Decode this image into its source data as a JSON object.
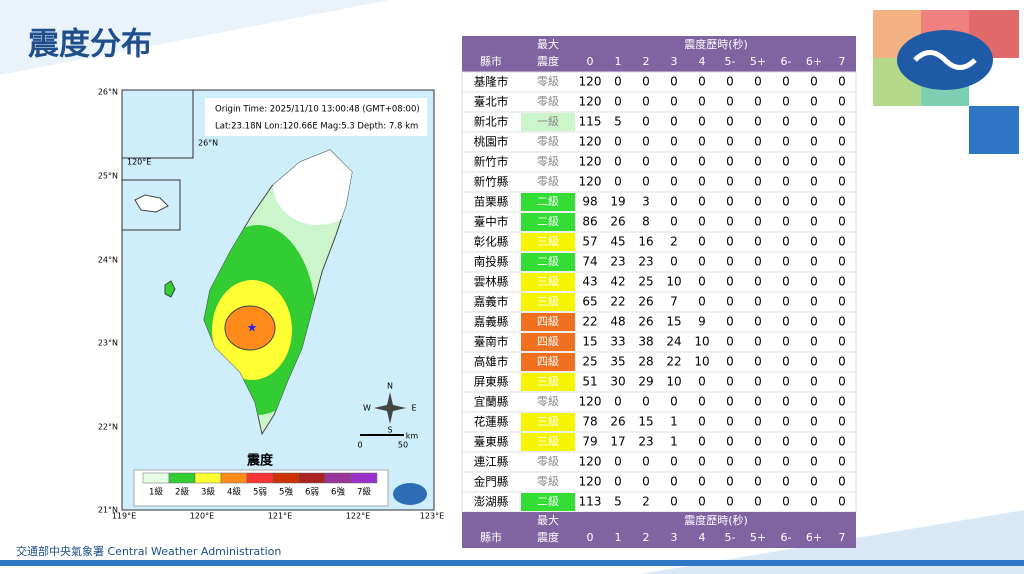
{
  "header": {
    "title": "震度分布"
  },
  "footer": {
    "agency": "交通部中央氣象署 Central Weather Administration"
  },
  "map": {
    "info": [
      "Origin Time: 2025/11/10  13:00:48  (GMT+08:00)",
      "Lat:23.18N  Lon:120.66E  Mag:5.3  Depth:  7.8  km"
    ],
    "lat_labels": [
      "26°N",
      "25°N",
      "24°N",
      "23°N",
      "22°N",
      "21°N"
    ],
    "lon_labels": [
      "119°E",
      "120°E",
      "121°E",
      "122°E",
      "123°E"
    ],
    "inset_lat": "26°N",
    "inset_lon": "120°E",
    "compass": [
      "N",
      "E",
      "S",
      "W"
    ],
    "scale": [
      "0",
      "50",
      "km"
    ],
    "legend_title": "震度",
    "legend": [
      {
        "label": "1級",
        "color": "#e6ffe6"
      },
      {
        "label": "2級",
        "color": "#33cc33"
      },
      {
        "label": "3級",
        "color": "#ffff33"
      },
      {
        "label": "4級",
        "color": "#ff8c1a"
      },
      {
        "label": "5弱",
        "color": "#ff3333"
      },
      {
        "label": "5強",
        "color": "#cc3300"
      },
      {
        "label": "6弱",
        "color": "#aa2222"
      },
      {
        "label": "6強",
        "color": "#993399"
      },
      {
        "label": "7級",
        "color": "#9933cc"
      }
    ]
  },
  "table": {
    "county": "縣市",
    "max_top": "最大",
    "max_bottom": "震度",
    "duration": "震度歷時(秒)",
    "columns": [
      "0",
      "1",
      "2",
      "3",
      "4",
      "5-",
      "5+",
      "6-",
      "6+",
      "7"
    ],
    "level_colors": {
      "零級": "#ffffff",
      "一級": "#ccf5cc",
      "二級": "#33dd33",
      "三級": "#f5f500",
      "四級": "#f07020"
    },
    "rows": [
      [
        "基隆市",
        "零級",
        120,
        0,
        0,
        0,
        0,
        0,
        0,
        0,
        0,
        0
      ],
      [
        "臺北市",
        "零級",
        120,
        0,
        0,
        0,
        0,
        0,
        0,
        0,
        0,
        0
      ],
      [
        "新北市",
        "一級",
        115,
        5,
        0,
        0,
        0,
        0,
        0,
        0,
        0,
        0
      ],
      [
        "桃園市",
        "零級",
        120,
        0,
        0,
        0,
        0,
        0,
        0,
        0,
        0,
        0
      ],
      [
        "新竹市",
        "零級",
        120,
        0,
        0,
        0,
        0,
        0,
        0,
        0,
        0,
        0
      ],
      [
        "新竹縣",
        "零級",
        120,
        0,
        0,
        0,
        0,
        0,
        0,
        0,
        0,
        0
      ],
      [
        "苗栗縣",
        "二級",
        98,
        19,
        3,
        0,
        0,
        0,
        0,
        0,
        0,
        0
      ],
      [
        "臺中市",
        "二級",
        86,
        26,
        8,
        0,
        0,
        0,
        0,
        0,
        0,
        0
      ],
      [
        "彰化縣",
        "三級",
        57,
        45,
        16,
        2,
        0,
        0,
        0,
        0,
        0,
        0
      ],
      [
        "南投縣",
        "二級",
        74,
        23,
        23,
        0,
        0,
        0,
        0,
        0,
        0,
        0
      ],
      [
        "雲林縣",
        "三級",
        43,
        42,
        25,
        10,
        0,
        0,
        0,
        0,
        0,
        0
      ],
      [
        "嘉義市",
        "三級",
        65,
        22,
        26,
        7,
        0,
        0,
        0,
        0,
        0,
        0
      ],
      [
        "嘉義縣",
        "四級",
        22,
        48,
        26,
        15,
        9,
        0,
        0,
        0,
        0,
        0
      ],
      [
        "臺南市",
        "四級",
        15,
        33,
        38,
        24,
        10,
        0,
        0,
        0,
        0,
        0
      ],
      [
        "高雄市",
        "四級",
        25,
        35,
        28,
        22,
        10,
        0,
        0,
        0,
        0,
        0
      ],
      [
        "屏東縣",
        "三級",
        51,
        30,
        29,
        10,
        0,
        0,
        0,
        0,
        0,
        0
      ],
      [
        "宜蘭縣",
        "零級",
        120,
        0,
        0,
        0,
        0,
        0,
        0,
        0,
        0,
        0
      ],
      [
        "花蓮縣",
        "三級",
        78,
        26,
        15,
        1,
        0,
        0,
        0,
        0,
        0,
        0
      ],
      [
        "臺東縣",
        "三級",
        79,
        17,
        23,
        1,
        0,
        0,
        0,
        0,
        0,
        0
      ],
      [
        "連江縣",
        "零級",
        120,
        0,
        0,
        0,
        0,
        0,
        0,
        0,
        0,
        0
      ],
      [
        "金門縣",
        "零級",
        120,
        0,
        0,
        0,
        0,
        0,
        0,
        0,
        0,
        0
      ],
      [
        "澎湖縣",
        "二級",
        113,
        5,
        2,
        0,
        0,
        0,
        0,
        0,
        0,
        0
      ]
    ]
  }
}
